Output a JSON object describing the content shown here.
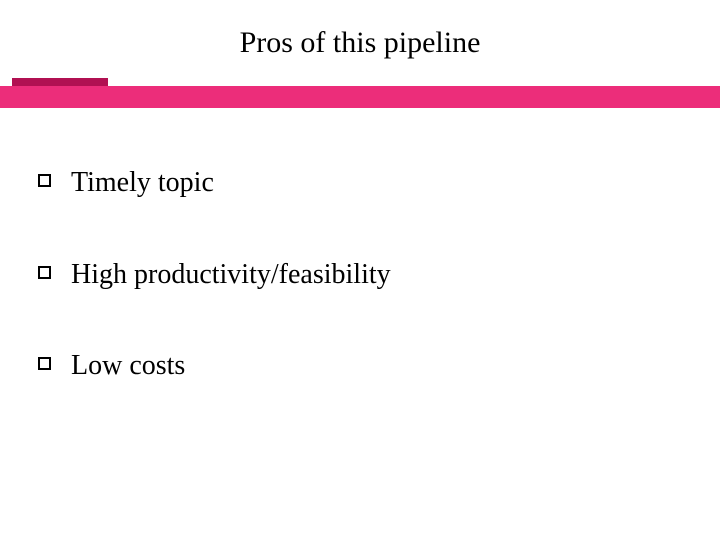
{
  "title": "Pros of this pipeline",
  "accent_color": "#ec2d7a",
  "accent_dark": "#b11052",
  "title_fontsize": 30,
  "body_fontsize": 28,
  "bullets": [
    {
      "text": "Timely topic"
    },
    {
      "text": "High productivity/feasibility"
    },
    {
      "text": "Low costs"
    }
  ],
  "bullet_style": "hollow-square",
  "bullet_border_color": "#000000",
  "background_color": "#ffffff"
}
